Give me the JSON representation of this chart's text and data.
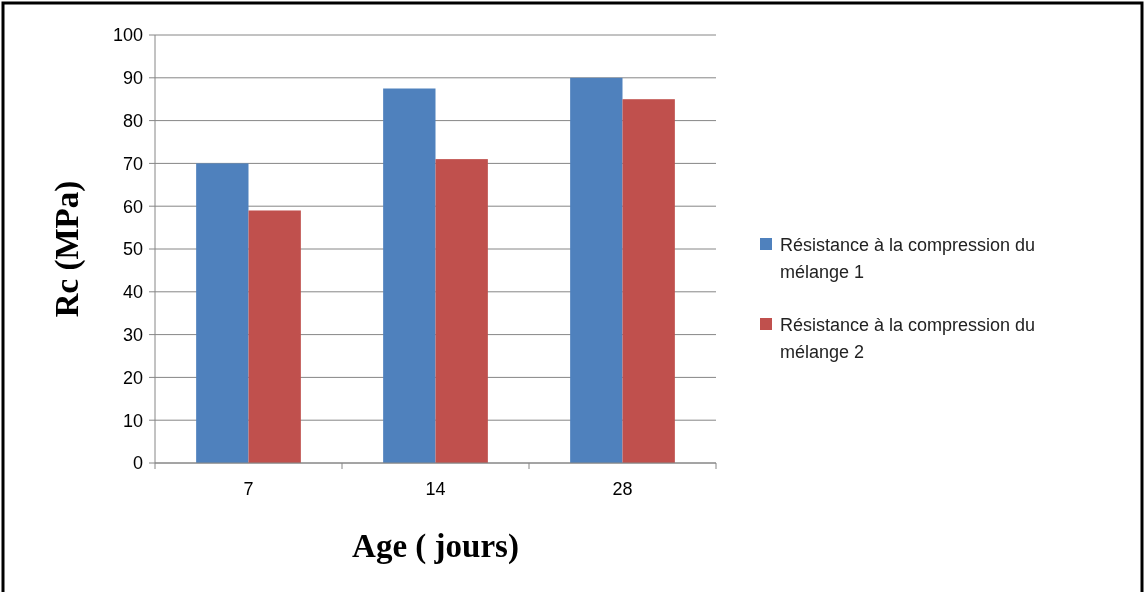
{
  "chart_data": {
    "type": "bar",
    "xlabel": "Age ( jours)",
    "ylabel": "Rc (MPa)",
    "categories": [
      "7",
      "14",
      "28"
    ],
    "series": [
      {
        "name": "Résistance à la compression du mélange 1",
        "color": "#4f81bd",
        "values": [
          70,
          87.5,
          90
        ]
      },
      {
        "name": "Résistance à la compression du mélange 2",
        "color": "#c0504d",
        "values": [
          59,
          71,
          85
        ]
      }
    ],
    "ylim": [
      0,
      100
    ],
    "yticks": [
      0,
      10,
      20,
      30,
      40,
      50,
      60,
      70,
      80,
      90,
      100
    ],
    "grid": "y",
    "legend": "right"
  }
}
